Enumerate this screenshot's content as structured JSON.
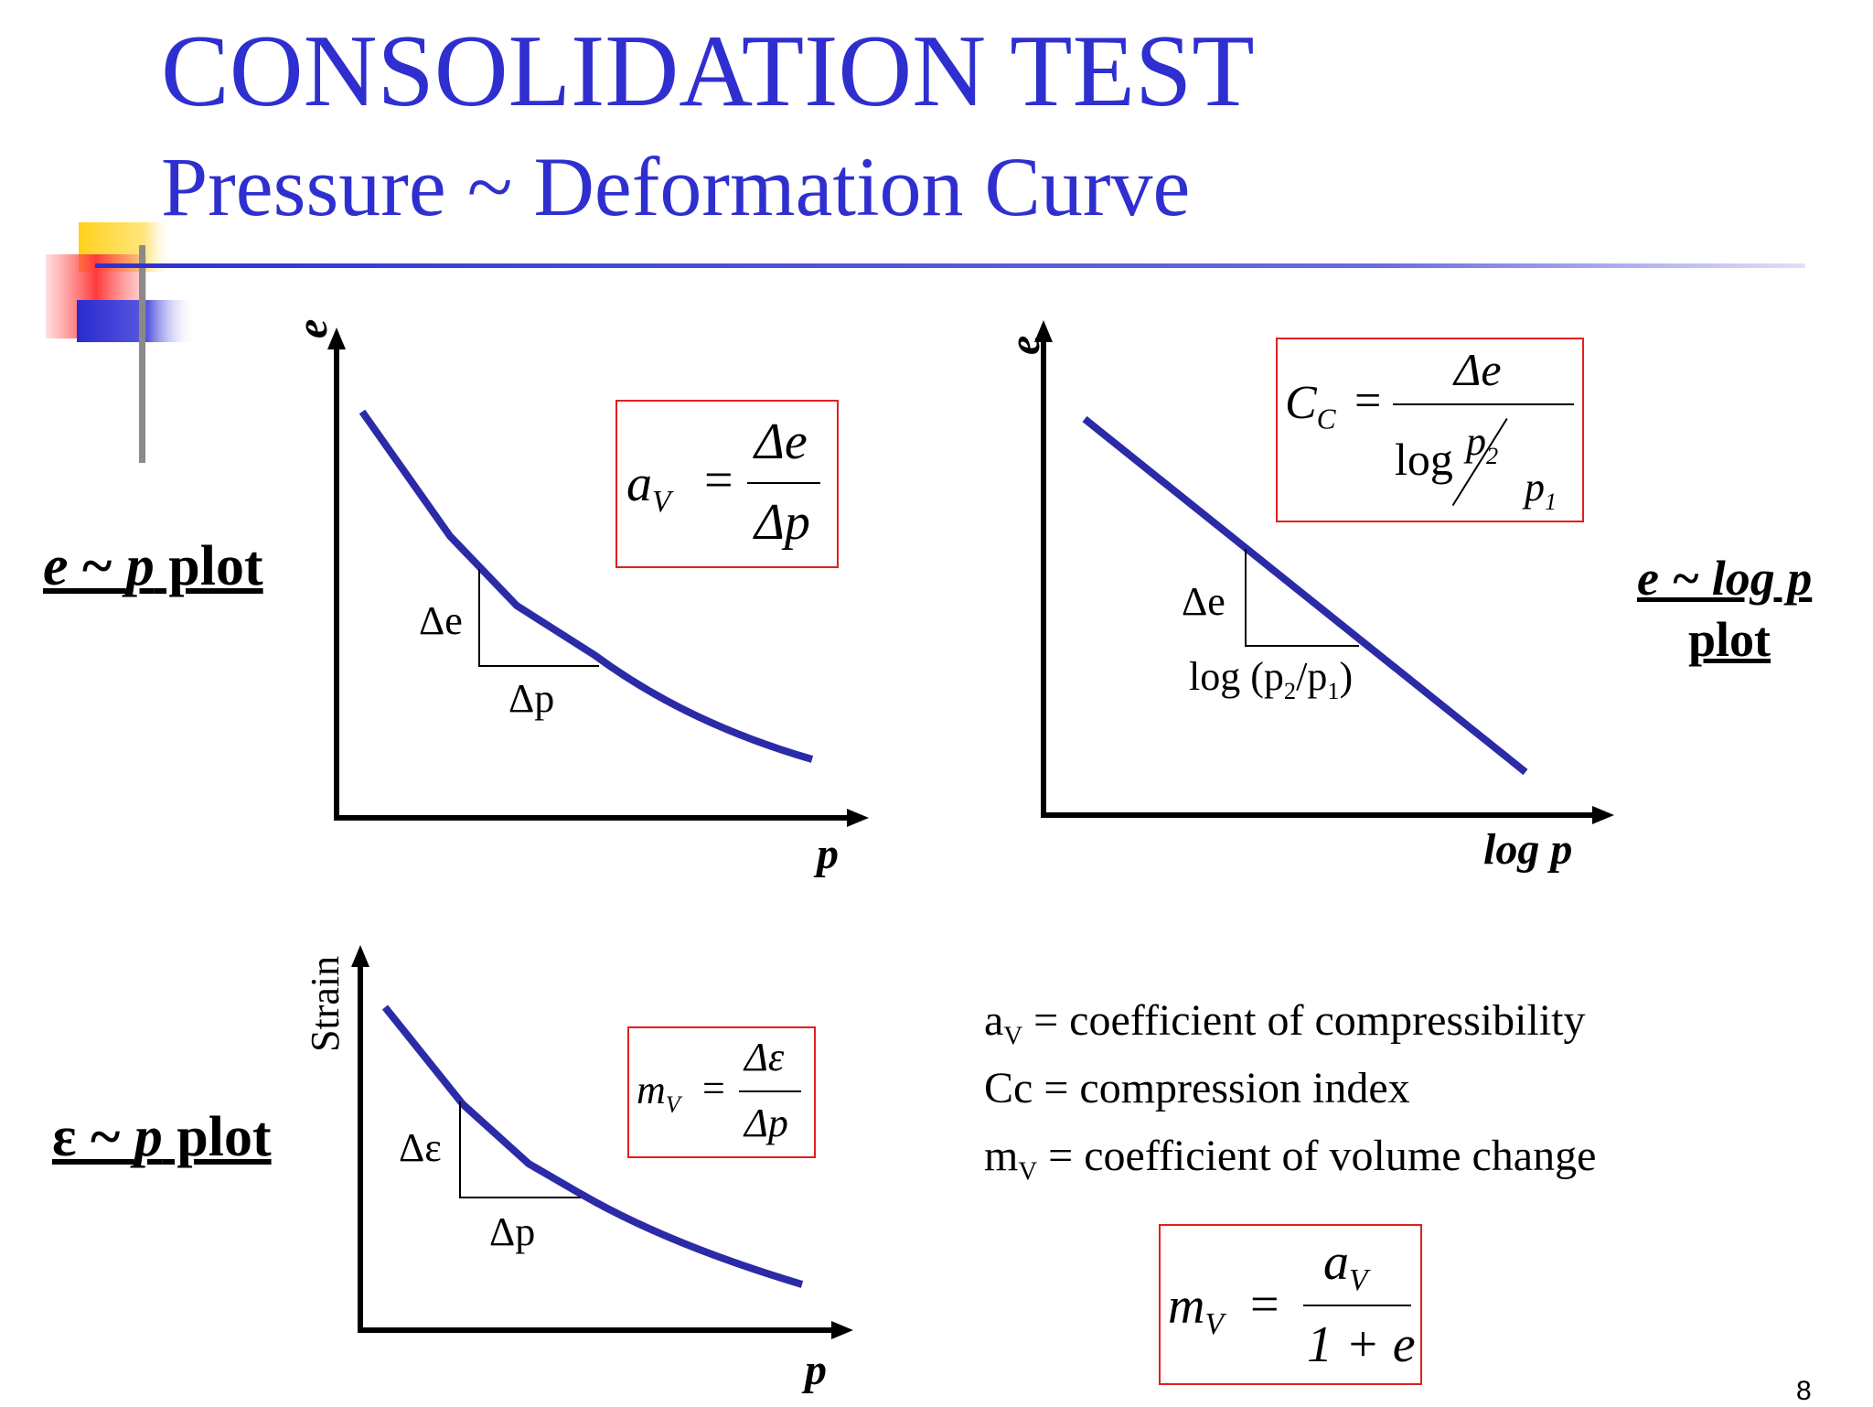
{
  "slide": {
    "title": "CONSOLIDATION TEST",
    "subtitle": "Pressure ~ Deformation Curve",
    "page_number": "8"
  },
  "colors": {
    "title": "#2f2fd0",
    "curve": "#2b2ba8",
    "box": "#e02020"
  },
  "plots": {
    "ep": {
      "label_prefix": "e",
      "label_mid": " ~ ",
      "label_p": "p",
      "label_suffix": " plot",
      "y_axis": "e",
      "x_axis": "p",
      "delta_y": "Δe",
      "delta_x": "Δp",
      "formula": {
        "lhs": "a",
        "lhs_sub": "V",
        "num": "Δe",
        "den": "Δp"
      }
    },
    "elogp": {
      "label_line1": "e ~ log p",
      "label_line2": "plot",
      "y_axis": "e",
      "x_axis": "log p",
      "delta_y": "Δe",
      "delta_x": "log (p",
      "delta_x_sub1": "2",
      "delta_x_mid": "/p",
      "delta_x_sub2": "1",
      "delta_x_end": ")",
      "formula": {
        "lhs": "C",
        "lhs_sub": "C",
        "num": "Δe",
        "den_log": "log",
        "den_p2": "p",
        "den_p2_sub": "2",
        "den_p1": "p",
        "den_p1_sub": "1"
      }
    },
    "strain": {
      "label_prefix": "ε",
      "label_mid": " ~ ",
      "label_p": "p",
      "label_suffix": " plot",
      "y_axis": "Strain",
      "x_axis": "p",
      "delta_y": "Δε",
      "delta_x": "Δp",
      "formula": {
        "lhs": "m",
        "lhs_sub": "V",
        "num": "Δε",
        "den": "Δp"
      }
    }
  },
  "definitions": [
    {
      "sym": "a",
      "sub": "V",
      "text": " = coefficient of compressibility"
    },
    {
      "sym": "Cc",
      "sub": "",
      "text": " = compression index"
    },
    {
      "sym": "m",
      "sub": "V",
      "text": " = coefficient of volume change"
    }
  ],
  "mv_formula": {
    "lhs": "m",
    "lhs_sub": "V",
    "num": "a",
    "num_sub": "V",
    "den": "1 + e"
  }
}
